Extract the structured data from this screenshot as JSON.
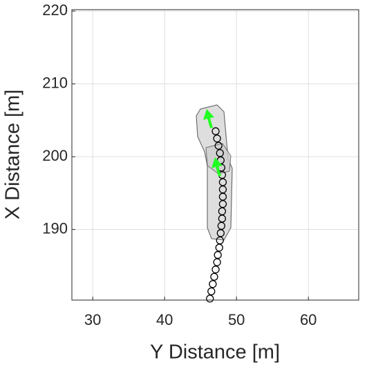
{
  "chart_data": {
    "type": "scatter",
    "xlabel": "Y Distance [m]",
    "ylabel": "X Distance [m]",
    "xlim": [
      27.1,
      67
    ],
    "ylim": [
      180.3,
      220.2
    ],
    "xticks": [
      30,
      40,
      50,
      60
    ],
    "yticks": [
      190,
      200,
      210,
      220
    ],
    "grid": true,
    "series": [
      {
        "color": "#000000",
        "x": [
          46.3,
          46.5,
          46.7,
          46.9,
          47.1,
          47.3,
          47.4,
          47.6,
          47.7,
          47.8,
          47.9,
          48.0,
          48.0,
          48.1,
          48.1,
          48.1,
          48.1,
          48.0,
          47.9,
          47.8,
          47.7,
          47.5,
          47.3,
          47.1
        ],
        "values": [
          180.5,
          181.5,
          182.5,
          183.5,
          184.5,
          185.5,
          186.5,
          187.5,
          188.5,
          189.5,
          190.5,
          191.5,
          192.5,
          193.5,
          194.5,
          195.5,
          196.5,
          197.5,
          198.5,
          199.5,
          200.5,
          201.5,
          202.5,
          203.5
        ]
      }
    ]
  }
}
